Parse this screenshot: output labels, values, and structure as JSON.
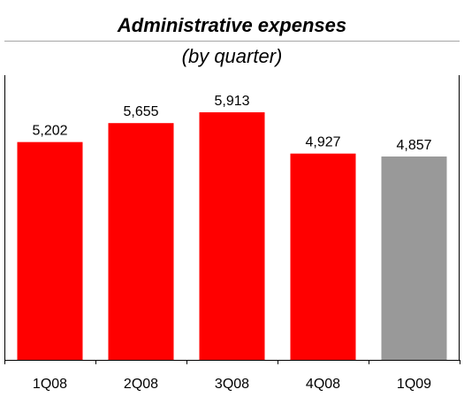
{
  "chart_data": {
    "type": "bar",
    "title": "Administrative expenses",
    "subtitle": "(by quarter)",
    "categories": [
      "1Q08",
      "2Q08",
      "3Q08",
      "4Q08",
      "1Q09"
    ],
    "values": [
      5202,
      5655,
      5913,
      4927,
      4857
    ],
    "value_labels": [
      "5,202",
      "5,655",
      "5,913",
      "4,927",
      "4,857"
    ],
    "xlabel": "",
    "ylabel": "",
    "ylim": [
      0,
      6800
    ],
    "grid": false,
    "legend": "none",
    "colors": {
      "bars": [
        "#ff0000",
        "#ff0000",
        "#ff0000",
        "#ff0000",
        "#999999"
      ],
      "frame": "#000000",
      "title_rule": "#a6a6a6"
    }
  }
}
